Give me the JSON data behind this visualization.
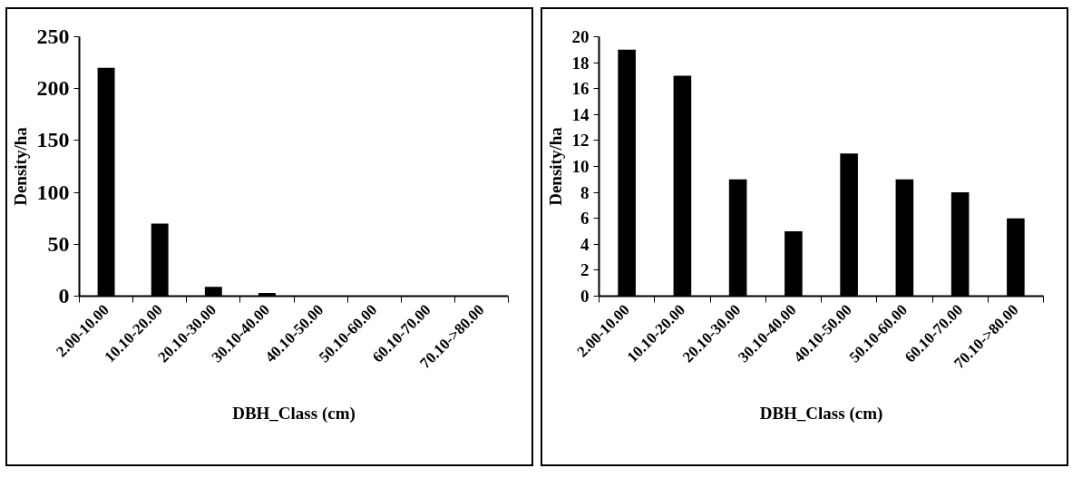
{
  "chart_data": [
    {
      "type": "bar",
      "categories": [
        "2.00-10.00",
        "10.10-20.00",
        "20.10-30.00",
        "30.10-40.00",
        "40.10-50.00",
        "50.10-60.00",
        "60.10-70.00",
        "70.10->80.00"
      ],
      "values": [
        220,
        70,
        9,
        3,
        0,
        0,
        0,
        0
      ],
      "color": "#000000",
      "ylim": [
        0,
        250
      ],
      "yticks": [
        0,
        50,
        100,
        150,
        200,
        250
      ],
      "xlabel": "DBH_Class (cm)",
      "ylabel": "Density/ha"
    },
    {
      "type": "bar",
      "categories": [
        "2.00-10.00",
        "10.10-20.00",
        "20.10-30.00",
        "30.10-40.00",
        "40.10-50.00",
        "50.10-60.00",
        "60.10-70.00",
        "70.10->80.00"
      ],
      "values": [
        19,
        17,
        9,
        5,
        11,
        9,
        8,
        6
      ],
      "color": "#000000",
      "ylim": [
        0,
        20
      ],
      "yticks": [
        0,
        2,
        4,
        6,
        8,
        10,
        12,
        14,
        16,
        18,
        20
      ],
      "xlabel": "DBH_Class (cm)",
      "ylabel": "Density/ha"
    }
  ]
}
